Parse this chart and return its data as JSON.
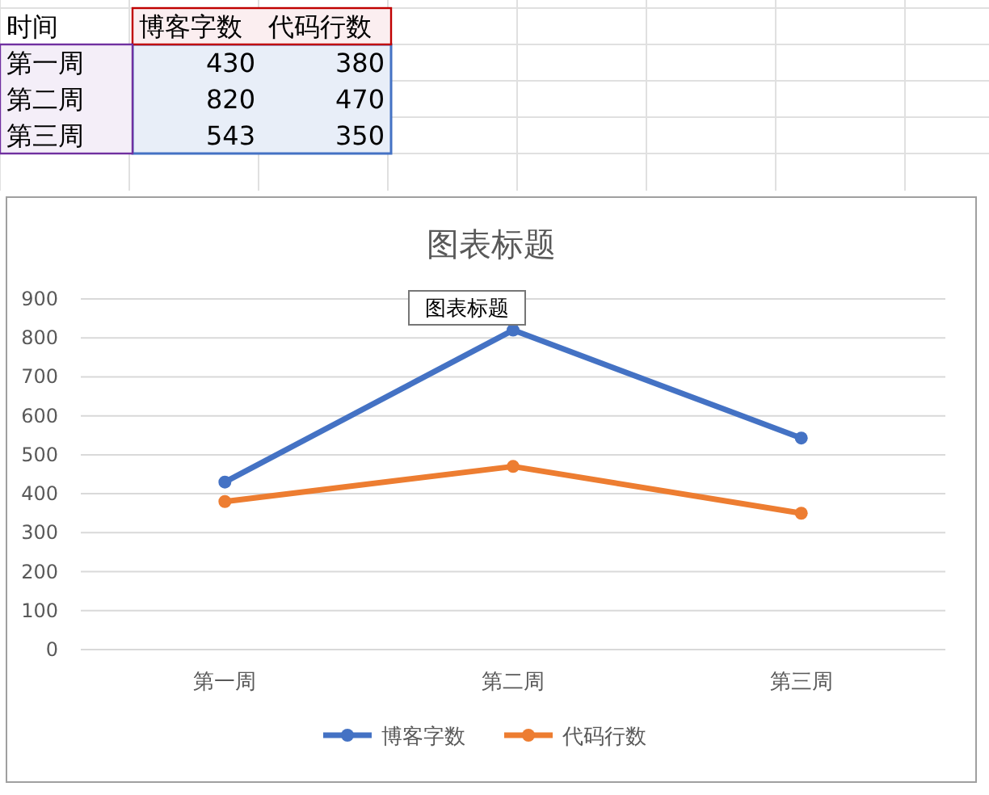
{
  "chart_data": [
    {
      "type": "other",
      "annotations": [
        "时间",
        "博客字数",
        "代码行数",
        "第一周",
        "430",
        "380",
        "第二周",
        "820",
        "470",
        "第三周",
        "543",
        "350"
      ]
    },
    {
      "type": "line",
      "title": "图表标题",
      "categories": [
        "第一周",
        "第二周",
        "第三周"
      ],
      "series": [
        {
          "name": "博客字数",
          "color": "#4472c4",
          "values": [
            430,
            820,
            543
          ]
        },
        {
          "name": "代码行数",
          "color": "#ed7d31",
          "values": [
            380,
            470,
            350
          ]
        }
      ],
      "ylim": [
        0,
        900
      ],
      "yticks": [
        0,
        100,
        200,
        300,
        400,
        500,
        600,
        700,
        800,
        900
      ],
      "grid": "y",
      "legend": "bottom",
      "marker": "circle",
      "line_style": "solid",
      "annotations": [
        "图表标题"
      ]
    }
  ]
}
